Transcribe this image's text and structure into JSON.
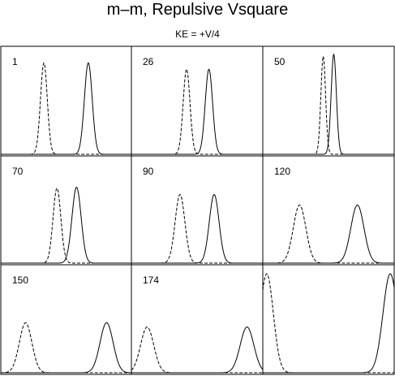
{
  "title": "m–m, Repulsive Vsquare",
  "subtitle": "KE = +V/4",
  "chart_data": [
    {
      "type": "line",
      "panel_label": "1",
      "series": [
        {
          "line": "dashed",
          "peaks": [
            {
              "x": 0.33,
              "height": 0.86,
              "width": 0.026
            }
          ]
        },
        {
          "line": "solid",
          "peaks": [
            {
              "x": 0.67,
              "height": 0.86,
              "width": 0.03
            }
          ]
        }
      ]
    },
    {
      "type": "line",
      "panel_label": "26",
      "series": [
        {
          "line": "dashed",
          "peaks": [
            {
              "x": 0.42,
              "height": 0.8,
              "width": 0.026
            }
          ]
        },
        {
          "line": "solid",
          "peaks": [
            {
              "x": 0.59,
              "height": 0.8,
              "width": 0.028
            }
          ]
        }
      ]
    },
    {
      "type": "line",
      "panel_label": "50",
      "series": [
        {
          "line": "dashed",
          "peaks": [
            {
              "x": 0.46,
              "height": 0.92,
              "width": 0.018
            }
          ]
        },
        {
          "line": "solid",
          "peaks": [
            {
              "x": 0.54,
              "height": 0.94,
              "width": 0.02
            }
          ]
        }
      ]
    },
    {
      "type": "line",
      "panel_label": "70",
      "series": [
        {
          "line": "dashed",
          "peaks": [
            {
              "x": 0.43,
              "height": 0.71,
              "width": 0.03
            }
          ]
        },
        {
          "line": "solid",
          "peaks": [
            {
              "x": 0.58,
              "height": 0.72,
              "width": 0.035
            }
          ]
        }
      ]
    },
    {
      "type": "line",
      "panel_label": "90",
      "series": [
        {
          "line": "dashed",
          "peaks": [
            {
              "x": 0.37,
              "height": 0.65,
              "width": 0.037
            }
          ]
        },
        {
          "line": "solid",
          "peaks": [
            {
              "x": 0.63,
              "height": 0.65,
              "width": 0.037
            }
          ]
        }
      ]
    },
    {
      "type": "line",
      "panel_label": "120",
      "series": [
        {
          "line": "dashed",
          "peaks": [
            {
              "x": 0.28,
              "height": 0.55,
              "width": 0.048
            }
          ]
        },
        {
          "line": "solid",
          "peaks": [
            {
              "x": 0.72,
              "height": 0.55,
              "width": 0.05
            }
          ]
        }
      ]
    },
    {
      "type": "line",
      "panel_label": "150",
      "series": [
        {
          "line": "dashed",
          "peaks": [
            {
              "x": 0.19,
              "height": 0.47,
              "width": 0.048
            }
          ]
        },
        {
          "line": "solid",
          "peaks": [
            {
              "x": 0.81,
              "height": 0.47,
              "width": 0.05
            }
          ]
        }
      ]
    },
    {
      "type": "line",
      "panel_label": "174",
      "series": [
        {
          "line": "dashed",
          "peaks": [
            {
              "x": 0.12,
              "height": 0.43,
              "width": 0.05
            }
          ]
        },
        {
          "line": "solid",
          "peaks": [
            {
              "x": 0.88,
              "height": 0.43,
              "width": 0.052
            }
          ]
        }
      ]
    },
    {
      "type": "line",
      "panel_label": "",
      "series": [
        {
          "line": "dashed",
          "peaks": [
            {
              "x": 0.03,
              "height": 0.93,
              "width": 0.05
            }
          ]
        },
        {
          "line": "solid",
          "peaks": [
            {
              "x": 0.97,
              "height": 0.93,
              "width": 0.055
            }
          ]
        }
      ]
    }
  ]
}
